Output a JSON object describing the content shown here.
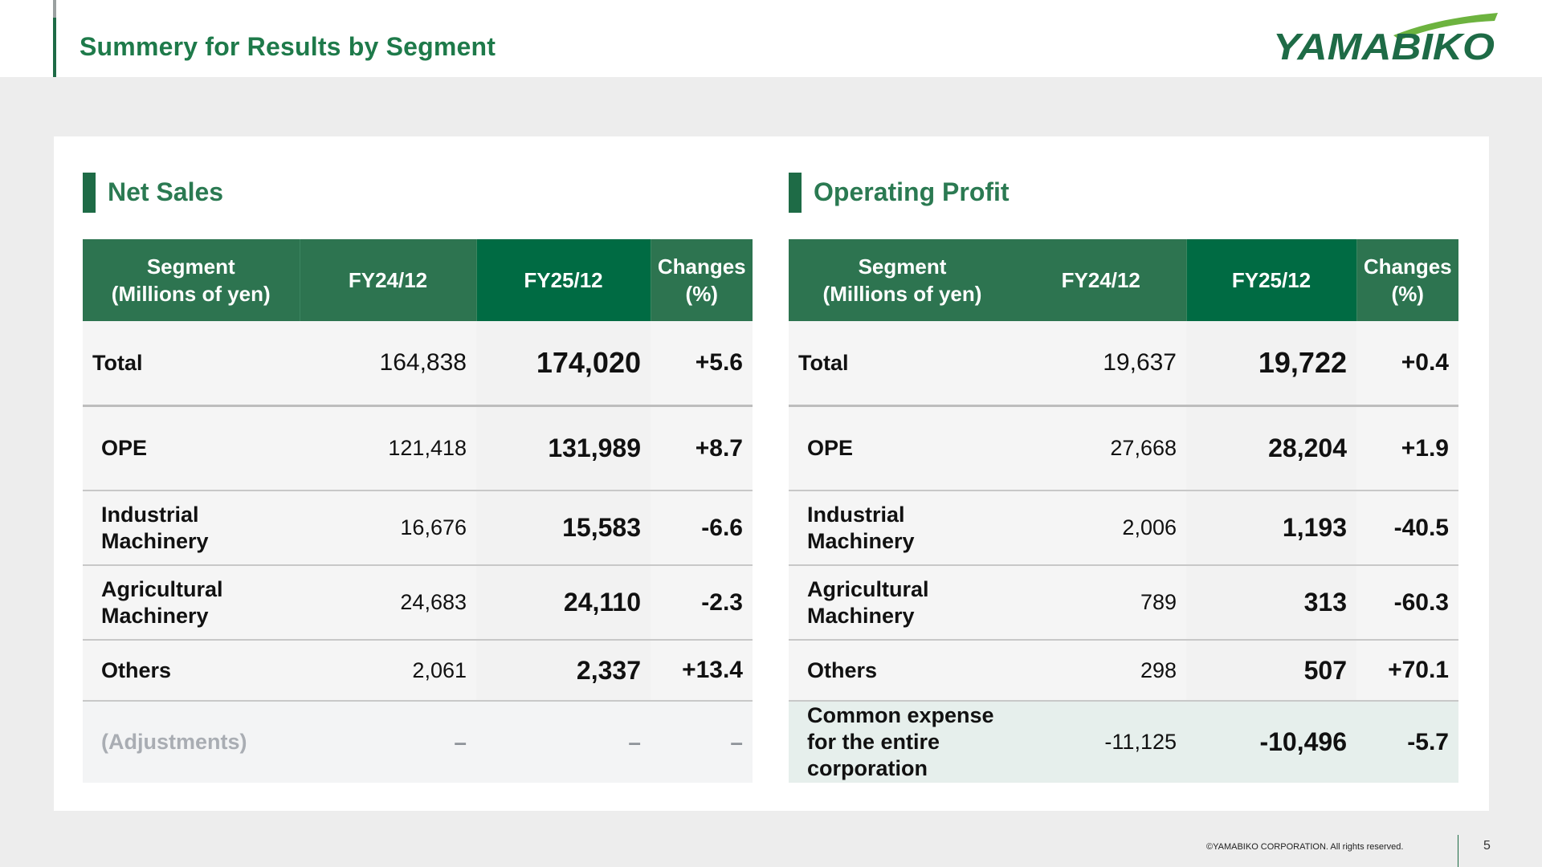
{
  "header": {
    "title": "Summery for Results by Segment",
    "logo_text": "YAMABIKO"
  },
  "colors": {
    "brand_green": "#1e6b46",
    "header_green": "#2d7450",
    "current_col_green": "#006b43",
    "logo_swoosh": "#6db33f"
  },
  "net_sales": {
    "title": "Net Sales",
    "headers": {
      "segment": "Segment\n(Millions of yen)",
      "fy24": "FY24/12",
      "fy25": "FY25/12",
      "changes": "Changes\n(%)"
    },
    "rows": [
      {
        "segment": "Total",
        "fy24": "164,838",
        "fy25": "174,020",
        "change": "+5.6"
      },
      {
        "segment": "OPE",
        "fy24": "121,418",
        "fy25": "131,989",
        "change": "+8.7"
      },
      {
        "segment": "Industrial\nMachinery",
        "fy24": "16,676",
        "fy25": "15,583",
        "change": "-6.6"
      },
      {
        "segment": "Agricultural\nMachinery",
        "fy24": "24,683",
        "fy25": "24,110",
        "change": "-2.3"
      },
      {
        "segment": "Others",
        "fy24": "2,061",
        "fy25": "2,337",
        "change": "+13.4"
      },
      {
        "segment": "(Adjustments)",
        "fy24": "–",
        "fy25": "–",
        "change": "–"
      }
    ]
  },
  "operating_profit": {
    "title": "Operating Profit",
    "headers": {
      "segment": "Segment\n(Millions of yen)",
      "fy24": "FY24/12",
      "fy25": "FY25/12",
      "changes": "Changes\n(%)"
    },
    "rows": [
      {
        "segment": "Total",
        "fy24": "19,637",
        "fy25": "19,722",
        "change": "+0.4"
      },
      {
        "segment": "OPE",
        "fy24": "27,668",
        "fy25": "28,204",
        "change": "+1.9"
      },
      {
        "segment": "Industrial\nMachinery",
        "fy24": "2,006",
        "fy25": "1,193",
        "change": "-40.5"
      },
      {
        "segment": "Agricultural\nMachinery",
        "fy24": "789",
        "fy25": "313",
        "change": "-60.3"
      },
      {
        "segment": "Others",
        "fy24": "298",
        "fy25": "507",
        "change": "+70.1"
      },
      {
        "segment": "Common expense\nfor the entire\ncorporation",
        "fy24": "-11,125",
        "fy25": "-10,496",
        "change": "-5.7"
      }
    ]
  },
  "footer": {
    "copyright": "©YAMABIKO CORPORATION. All rights reserved.",
    "page_number": "5"
  }
}
